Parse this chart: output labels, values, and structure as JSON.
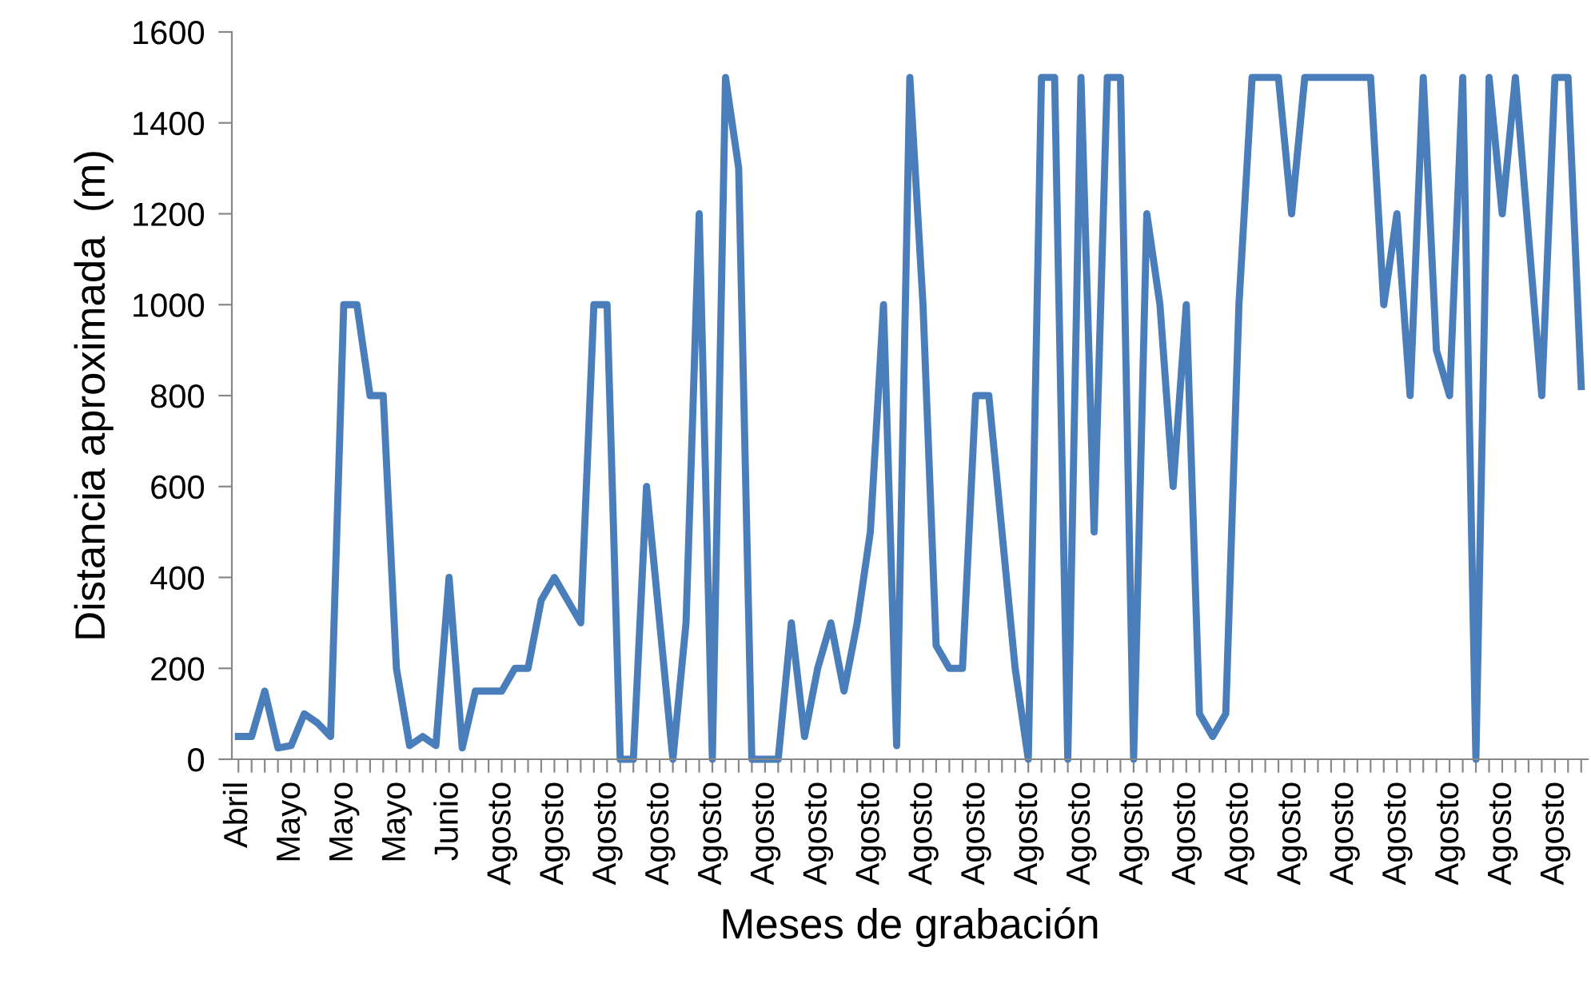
{
  "chart_data": {
    "type": "line",
    "xlabel": "Meses de grabación",
    "ylabel": "Distancia aproximada  (m)",
    "categories": [
      "Abril",
      null,
      null,
      null,
      "Mayo",
      null,
      null,
      null,
      "Mayo",
      null,
      null,
      null,
      "Mayo",
      null,
      null,
      null,
      "Junio",
      null,
      null,
      null,
      "Agosto",
      null,
      null,
      null,
      "Agosto",
      null,
      null,
      null,
      "Agosto",
      null,
      null,
      null,
      "Agosto",
      null,
      null,
      null,
      "Agosto",
      null,
      null,
      null,
      "Agosto",
      null,
      null,
      null,
      "Agosto",
      null,
      null,
      null,
      "Agosto",
      null,
      null,
      null,
      "Agosto",
      null,
      null,
      null,
      "Agosto",
      null,
      null,
      null,
      "Agosto",
      null,
      null,
      null,
      "Agosto",
      null,
      null,
      null,
      "Agosto",
      null,
      null,
      null,
      "Agosto",
      null,
      null,
      null,
      "Agosto",
      null,
      null,
      null,
      "Agosto",
      null,
      null,
      null,
      "Agosto",
      null,
      null,
      null,
      "Agosto",
      null,
      null,
      null,
      "Agosto",
      null,
      null,
      null,
      "Agosto",
      null,
      null,
      null,
      "Agosto",
      null,
      null
    ],
    "series": [
      {
        "color": "#4a7ebb",
        "values": [
          50,
          50,
          150,
          25,
          30,
          100,
          80,
          50,
          1000,
          1000,
          800,
          800,
          200,
          30,
          50,
          30,
          400,
          25,
          150,
          150,
          150,
          200,
          200,
          350,
          400,
          350,
          300,
          1000,
          1000,
          0,
          0,
          600,
          300,
          0,
          300,
          1200,
          0,
          1500,
          1300,
          0,
          0,
          0,
          300,
          50,
          200,
          300,
          150,
          300,
          500,
          1000,
          30,
          1500,
          1000,
          250,
          200,
          200,
          800,
          800,
          500,
          200,
          0,
          1500,
          1500,
          0,
          1500,
          500,
          1500,
          1500,
          0,
          1200,
          1000,
          600,
          1000,
          100,
          50,
          100,
          1000,
          1500,
          1500,
          1500,
          1200,
          1500,
          1500,
          1500,
          1500,
          1500,
          1500,
          1000,
          1200,
          800,
          1500,
          900,
          800,
          1500,
          0,
          1500,
          1200,
          1500,
          1150,
          800,
          1500,
          1500,
          820
        ]
      }
    ],
    "ylim": [
      0,
      1600
    ],
    "yticks": [
      0,
      200,
      400,
      600,
      800,
      1000,
      1200,
      1400,
      1600
    ],
    "grid": false,
    "legend": false,
    "marker": "none",
    "line_style": "solid"
  }
}
